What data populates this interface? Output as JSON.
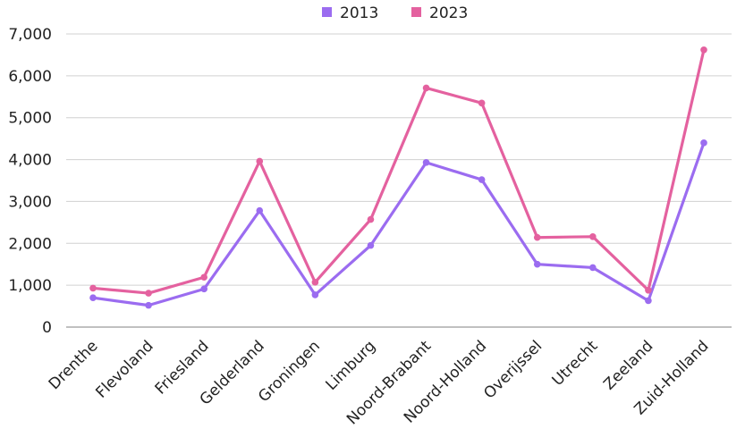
{
  "chart_data": {
    "type": "line",
    "categories": [
      "Drenthe",
      "Flevoland",
      "Friesland",
      "Gelderland",
      "Groningen",
      "Limburg",
      "Noord-Brabant",
      "Noord-Holland",
      "Overijssel",
      "Utrecht",
      "Zeeland",
      "Zuid-Holland"
    ],
    "series": [
      {
        "name": "2013",
        "color": "#9b6cf0",
        "values": [
          700,
          520,
          910,
          2780,
          770,
          1950,
          3930,
          3520,
          1500,
          1420,
          630,
          4400
        ]
      },
      {
        "name": "2023",
        "color": "#e4619f",
        "values": [
          930,
          810,
          1190,
          3960,
          1070,
          2570,
          5710,
          5350,
          2140,
          2160,
          880,
          6620
        ]
      }
    ],
    "y_ticks": [
      "0",
      "1,000",
      "2,000",
      "3,000",
      "4,000",
      "5,000",
      "6,000",
      "7,000"
    ],
    "ylim": [
      0,
      7000
    ],
    "grid": true,
    "legend_position": "top-center",
    "title": "",
    "xlabel": "",
    "ylabel": ""
  }
}
